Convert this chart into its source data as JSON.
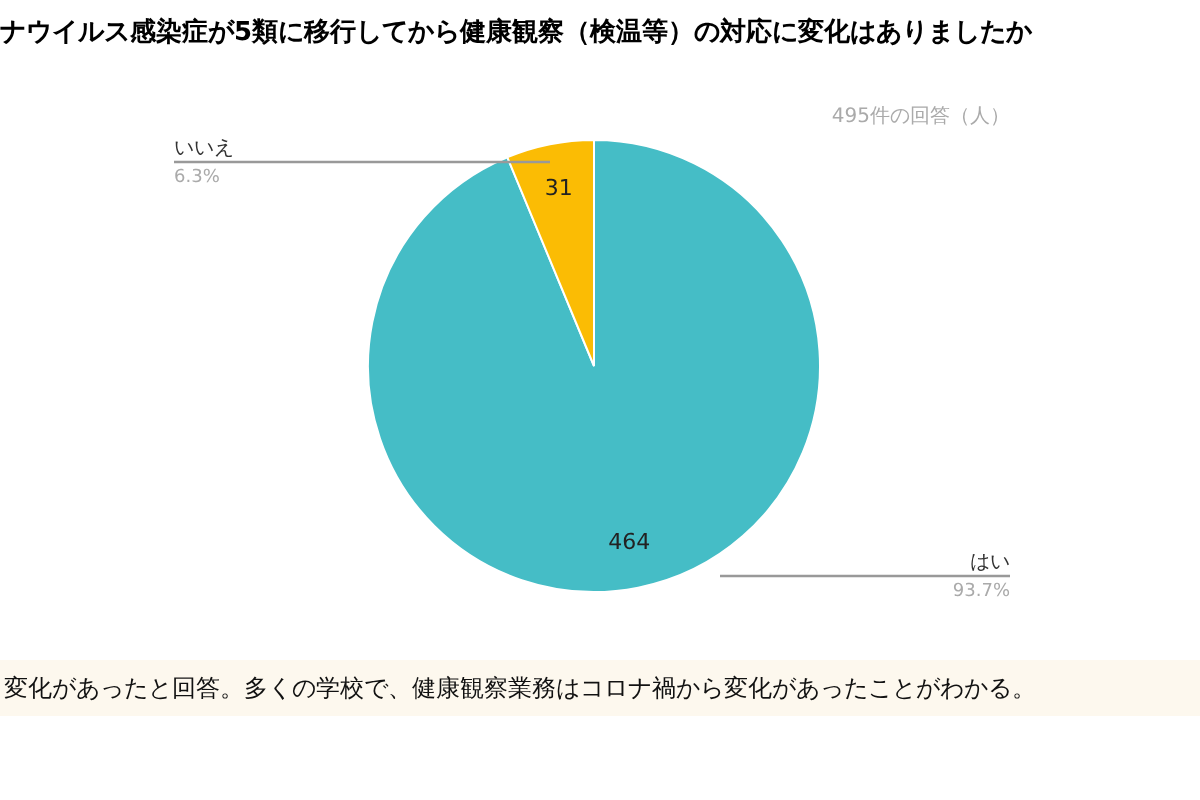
{
  "chart_data": {
    "type": "pie",
    "title": "ナウイルス感染症が5類に移行してから健康観察（検温等）の対応に変化はありましたか",
    "subtitle": "495件の回答（人）",
    "categories": [
      "はい",
      "いいえ"
    ],
    "values": [
      464,
      31
    ],
    "colors": [
      "#45bdc6",
      "#fbbc04"
    ],
    "data_labels": true,
    "annotations": [
      "93.7%",
      "6.3%",
      "変化があったと回答。多くの学校で、健康観察業務はコロナ禍から変化があったことがわかる。"
    ]
  }
}
